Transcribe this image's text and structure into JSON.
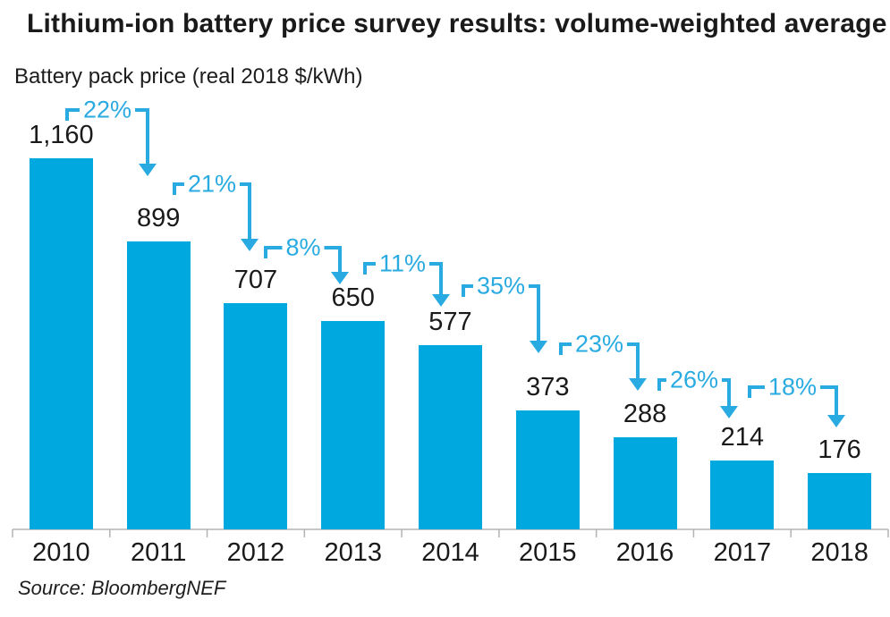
{
  "header": {
    "title": "Lithium-ion battery price survey results: volume-weighted average",
    "subtitle": "Battery pack price (real 2018 $/kWh)"
  },
  "footer": {
    "source": "Source: BloombergNEF"
  },
  "chart_data": {
    "type": "bar",
    "title": "Lithium-ion battery price survey results: volume-weighted average",
    "ylabel": "Battery pack price (real 2018 $/kWh)",
    "xlabel": "",
    "categories": [
      "2010",
      "2011",
      "2012",
      "2013",
      "2014",
      "2015",
      "2016",
      "2017",
      "2018"
    ],
    "values": [
      1160,
      899,
      707,
      650,
      577,
      373,
      288,
      214,
      176
    ],
    "value_labels": [
      "1,160",
      "899",
      "707",
      "650",
      "577",
      "373",
      "288",
      "214",
      "176"
    ],
    "annotations": [
      {
        "from": "2010",
        "to": "2011",
        "label": "22%",
        "change_pct": -22
      },
      {
        "from": "2011",
        "to": "2012",
        "label": "21%",
        "change_pct": -21
      },
      {
        "from": "2012",
        "to": "2013",
        "label": "8%",
        "change_pct": -8
      },
      {
        "from": "2013",
        "to": "2014",
        "label": "11%",
        "change_pct": -11
      },
      {
        "from": "2014",
        "to": "2015",
        "label": "35%",
        "change_pct": -35
      },
      {
        "from": "2015",
        "to": "2016",
        "label": "23%",
        "change_pct": -23
      },
      {
        "from": "2016",
        "to": "2017",
        "label": "26%",
        "change_pct": -26
      },
      {
        "from": "2017",
        "to": "2018",
        "label": "18%",
        "change_pct": -18
      }
    ],
    "ylim": [
      0,
      1200
    ],
    "grid": false,
    "legend": false,
    "colors": {
      "bar": "#00a8e0",
      "annotation": "#29abe2",
      "axis": "#b3b3b3",
      "text": "#1a1a1a"
    },
    "source": "Source: BloombergNEF"
  }
}
